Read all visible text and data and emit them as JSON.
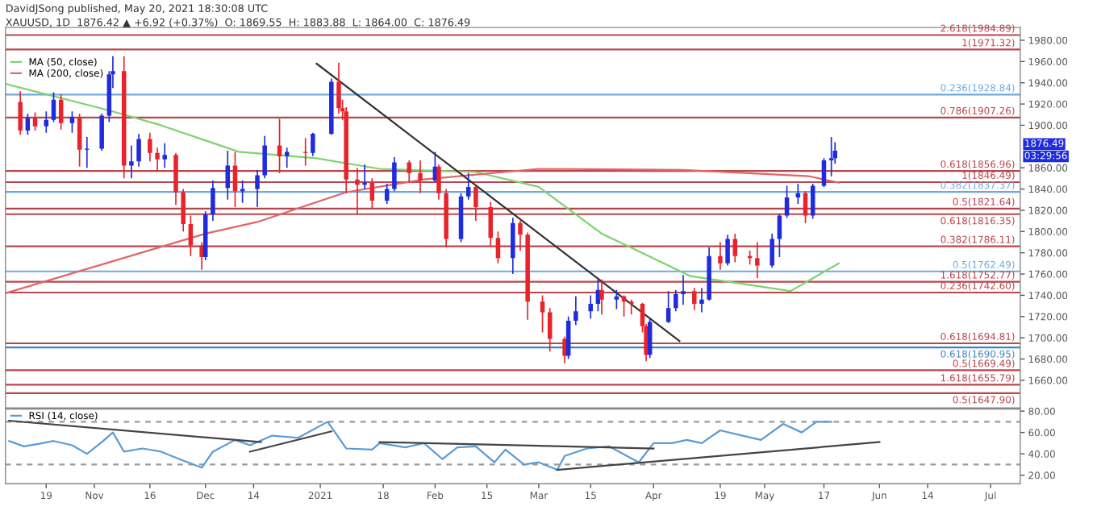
{
  "chart_data": [
    {
      "type": "candlestick",
      "x": [
        "2020-10-12",
        "2020-10-14",
        "2020-10-16",
        "2020-10-19",
        "2020-10-21",
        "2020-10-23",
        "2020-10-26",
        "2020-10-28",
        "2020-10-30",
        "2020-11-03",
        "2020-11-05",
        "2020-11-06",
        "2020-11-09",
        "2020-11-11",
        "2020-11-13",
        "2020-11-16",
        "2020-11-18",
        "2020-11-20",
        "2020-11-23",
        "2020-11-25",
        "2020-11-27",
        "2020-11-30",
        "2020-12-01",
        "2020-12-03",
        "2020-12-07",
        "2020-12-09",
        "2020-12-11",
        "2020-12-15",
        "2020-12-17",
        "2020-12-21",
        "2020-12-23",
        "2020-12-28",
        "2020-12-30",
        "2021-01-04",
        "2021-01-06",
        "2021-01-07",
        "2021-01-08",
        "2021-01-11",
        "2021-01-13",
        "2021-01-15",
        "2021-01-19",
        "2021-01-21",
        "2021-01-25",
        "2021-01-28",
        "2021-02-01",
        "2021-02-02",
        "2021-02-04",
        "2021-02-08",
        "2021-02-10",
        "2021-02-12",
        "2021-02-16",
        "2021-02-18",
        "2021-02-22",
        "2021-02-24",
        "2021-02-26",
        "2021-03-02",
        "2021-03-04",
        "2021-03-08",
        "2021-03-09",
        "2021-03-11",
        "2021-03-15",
        "2021-03-17",
        "2021-03-18",
        "2021-03-22",
        "2021-03-24",
        "2021-03-26",
        "2021-03-29",
        "2021-03-30",
        "2021-03-31",
        "2021-04-05",
        "2021-04-07",
        "2021-04-09",
        "2021-04-12",
        "2021-04-14",
        "2021-04-16",
        "2021-04-19",
        "2021-04-21",
        "2021-04-23",
        "2021-04-27",
        "2021-04-29",
        "2021-05-03",
        "2021-05-05",
        "2021-05-07",
        "2021-05-10",
        "2021-05-12",
        "2021-05-14",
        "2021-05-17",
        "2021-05-19",
        "2021-05-20"
      ],
      "ohlc": [
        [
          1922,
          1932,
          1891,
          1895
        ],
        [
          1895,
          1911,
          1891,
          1907
        ],
        [
          1907,
          1912,
          1895,
          1899
        ],
        [
          1899,
          1913,
          1893,
          1905
        ],
        [
          1905,
          1931,
          1903,
          1924
        ],
        [
          1924,
          1929,
          1896,
          1902
        ],
        [
          1902,
          1913,
          1893,
          1908
        ],
        [
          1908,
          1911,
          1861,
          1877
        ],
        [
          1877,
          1889,
          1860,
          1878
        ],
        [
          1878,
          1911,
          1876,
          1909
        ],
        [
          1909,
          1951,
          1903,
          1948
        ],
        [
          1948,
          1965,
          1935,
          1951
        ],
        [
          1951,
          1965,
          1850,
          1862
        ],
        [
          1862,
          1881,
          1850,
          1866
        ],
        [
          1866,
          1892,
          1861,
          1887
        ],
        [
          1887,
          1893,
          1866,
          1874
        ],
        [
          1874,
          1879,
          1857,
          1868
        ],
        [
          1868,
          1883,
          1860,
          1872
        ],
        [
          1872,
          1874,
          1825,
          1837
        ],
        [
          1837,
          1840,
          1800,
          1807
        ],
        [
          1807,
          1815,
          1777,
          1787
        ],
        [
          1787,
          1790,
          1764,
          1776
        ],
        [
          1776,
          1819,
          1773,
          1816
        ],
        [
          1816,
          1848,
          1810,
          1841
        ],
        [
          1841,
          1876,
          1830,
          1862
        ],
        [
          1862,
          1875,
          1823,
          1838
        ],
        [
          1838,
          1848,
          1827,
          1840
        ],
        [
          1840,
          1858,
          1823,
          1853
        ],
        [
          1853,
          1890,
          1850,
          1881
        ],
        [
          1881,
          1906,
          1855,
          1871
        ],
        [
          1871,
          1879,
          1860,
          1875
        ],
        [
          1875,
          1888,
          1862,
          1874
        ],
        [
          1874,
          1893,
          1871,
          1892
        ],
        [
          1892,
          1944,
          1891,
          1941
        ],
        [
          1941,
          1959,
          1911,
          1916
        ],
        [
          1916,
          1924,
          1905,
          1913
        ],
        [
          1913,
          1917,
          1836,
          1849
        ],
        [
          1849,
          1860,
          1817,
          1844
        ],
        [
          1844,
          1863,
          1840,
          1846
        ],
        [
          1846,
          1850,
          1822,
          1829
        ],
        [
          1829,
          1845,
          1826,
          1840
        ],
        [
          1840,
          1870,
          1838,
          1865
        ],
        [
          1865,
          1867,
          1846,
          1855
        ],
        [
          1855,
          1867,
          1836,
          1848
        ],
        [
          1848,
          1875,
          1846,
          1861
        ],
        [
          1861,
          1863,
          1830,
          1836
        ],
        [
          1836,
          1840,
          1785,
          1793
        ],
        [
          1793,
          1836,
          1790,
          1833
        ],
        [
          1833,
          1855,
          1830,
          1842
        ],
        [
          1842,
          1843,
          1810,
          1823
        ],
        [
          1823,
          1828,
          1786,
          1794
        ],
        [
          1794,
          1800,
          1770,
          1775
        ],
        [
          1775,
          1813,
          1760,
          1808
        ],
        [
          1808,
          1810,
          1782,
          1797
        ],
        [
          1797,
          1799,
          1717,
          1734
        ],
        [
          1734,
          1740,
          1705,
          1724
        ],
        [
          1724,
          1728,
          1687,
          1699
        ],
        [
          1699,
          1701,
          1676,
          1683
        ],
        [
          1683,
          1720,
          1680,
          1716
        ],
        [
          1716,
          1739,
          1712,
          1725
        ],
        [
          1725,
          1740,
          1718,
          1732
        ],
        [
          1732,
          1755,
          1725,
          1745
        ],
        [
          1745,
          1755,
          1722,
          1736
        ],
        [
          1736,
          1745,
          1727,
          1739
        ],
        [
          1739,
          1740,
          1720,
          1734
        ],
        [
          1734,
          1736,
          1722,
          1732
        ],
        [
          1732,
          1733,
          1705,
          1711
        ],
        [
          1711,
          1713,
          1678,
          1684
        ],
        [
          1684,
          1718,
          1681,
          1715
        ],
        [
          1715,
          1744,
          1714,
          1728
        ],
        [
          1728,
          1745,
          1725,
          1741
        ],
        [
          1741,
          1759,
          1731,
          1744
        ],
        [
          1744,
          1747,
          1726,
          1732
        ],
        [
          1732,
          1747,
          1724,
          1736
        ],
        [
          1736,
          1785,
          1735,
          1777
        ],
        [
          1777,
          1790,
          1764,
          1770
        ],
        [
          1770,
          1797,
          1768,
          1793
        ],
        [
          1793,
          1798,
          1771,
          1777
        ],
        [
          1777,
          1782,
          1769,
          1775
        ],
        [
          1775,
          1790,
          1756,
          1768
        ],
        [
          1768,
          1798,
          1766,
          1793
        ],
        [
          1793,
          1817,
          1776,
          1815
        ],
        [
          1815,
          1843,
          1813,
          1832
        ],
        [
          1832,
          1845,
          1826,
          1836
        ],
        [
          1836,
          1838,
          1808,
          1815
        ],
        [
          1815,
          1845,
          1812,
          1843
        ],
        [
          1843,
          1869,
          1842,
          1867
        ],
        [
          1867,
          1889,
          1852,
          1869
        ],
        [
          1869,
          1884,
          1864,
          1876
        ]
      ],
      "colors": [
        "#e8232a",
        "#1f2bdc",
        "#e8232a",
        "#1f2bdc",
        "#1f2bdc",
        "#e8232a",
        "#1f2bdc",
        "#e8232a",
        "#1f2bdc",
        "#1f2bdc",
        "#1f2bdc",
        "#1f2bdc",
        "#e8232a",
        "#1f2bdc",
        "#1f2bdc",
        "#e8232a",
        "#e8232a",
        "#1f2bdc",
        "#e8232a",
        "#e8232a",
        "#e8232a",
        "#e8232a",
        "#1f2bdc",
        "#1f2bdc",
        "#1f2bdc",
        "#e8232a",
        "#1f2bdc",
        "#1f2bdc",
        "#1f2bdc",
        "#e8232a",
        "#1f2bdc",
        "#e8232a",
        "#1f2bdc",
        "#1f2bdc",
        "#e8232a",
        "#e8232a",
        "#e8232a",
        "#e8232a",
        "#1f2bdc",
        "#e8232a",
        "#1f2bdc",
        "#1f2bdc",
        "#e8232a",
        "#e8232a",
        "#1f2bdc",
        "#e8232a",
        "#e8232a",
        "#1f2bdc",
        "#1f2bdc",
        "#e8232a",
        "#e8232a",
        "#e8232a",
        "#1f2bdc",
        "#e8232a",
        "#e8232a",
        "#e8232a",
        "#e8232a",
        "#e8232a",
        "#1f2bdc",
        "#1f2bdc",
        "#1f2bdc",
        "#1f2bdc",
        "#e8232a",
        "#1f2bdc",
        "#e8232a",
        "#e8232a",
        "#e8232a",
        "#e8232a",
        "#1f2bdc",
        "#1f2bdc",
        "#1f2bdc",
        "#1f2bdc",
        "#e8232a",
        "#1f2bdc",
        "#1f2bdc",
        "#e8232a",
        "#1f2bdc",
        "#e8232a",
        "#e8232a",
        "#e8232a",
        "#1f2bdc",
        "#1f2bdc",
        "#1f2bdc",
        "#1f2bdc",
        "#e8232a",
        "#1f2bdc",
        "#1f2bdc",
        "#1f2bdc",
        "#1f2bdc"
      ],
      "series": [
        {
          "name": "MA (50, close)",
          "type": "line",
          "color": "#7fd36e",
          "x": [
            "2020-10-08",
            "2020-11-05",
            "2020-11-19",
            "2020-12-10",
            "2020-12-31",
            "2021-01-17",
            "2021-02-12",
            "2021-03-01",
            "2021-03-18",
            "2021-04-11",
            "2021-05-08",
            "2021-05-21"
          ],
          "values": [
            1939,
            1914,
            1900,
            1875,
            1869,
            1859,
            1856,
            1842,
            1798,
            1758,
            1744,
            1770
          ]
        },
        {
          "name": "MA (200, close)",
          "type": "line",
          "color": "#e06666",
          "x": [
            "2020-10-08",
            "2020-12-01",
            "2020-12-15",
            "2021-01-08",
            "2021-01-29",
            "2021-03-01",
            "2021-04-09",
            "2021-05-13",
            "2021-05-21"
          ],
          "values": [
            1742,
            1798,
            1809,
            1837,
            1849,
            1859,
            1858,
            1852,
            1846
          ]
        },
        {
          "type": "line",
          "color": "#333333",
          "x": [
            "2020-12-31",
            "2021-04-08"
          ],
          "values": [
            1958,
            1697
          ]
        }
      ],
      "ref_lines": [
        {
          "axis": "y",
          "value": 1984.89,
          "label": "2.618(1984.89)",
          "color": "#b8474d"
        },
        {
          "axis": "y",
          "value": 1971.32,
          "label": "1(1971.32)",
          "color": "#b8474d"
        },
        {
          "axis": "y",
          "value": 1928.84,
          "label": "0.236(1928.84)",
          "color": "#6fa8dc"
        },
        {
          "axis": "y",
          "value": 1907.26,
          "label": "0.786(1907.26)",
          "color": "#b8474d"
        },
        {
          "axis": "y",
          "value": 1856.96,
          "label": "0.618(1856.96)",
          "color": "#b8474d"
        },
        {
          "axis": "y",
          "value": 1846.49,
          "label": "1(1846.49)",
          "color": "#b8474d"
        },
        {
          "axis": "y",
          "value": 1837.37,
          "label": "0.382(1837.37)",
          "color": "#6fa8dc"
        },
        {
          "axis": "y",
          "value": 1821.64,
          "label": "0.5(1821.64)",
          "color": "#b8474d"
        },
        {
          "axis": "y",
          "value": 1816.35,
          "label": "0.618(1816.35)",
          "color": "#b8474d"
        },
        {
          "axis": "y",
          "value": 1786.11,
          "label": "0.382(1786.11)",
          "color": "#b8474d"
        },
        {
          "axis": "y",
          "value": 1762.49,
          "label": "0.5(1762.49)",
          "color": "#6fa8dc"
        },
        {
          "axis": "y",
          "value": 1752.77,
          "label": "1.618(1752.77)",
          "color": "#b8474d"
        },
        {
          "axis": "y",
          "value": 1742.6,
          "label": "0.236(1742.60)",
          "color": "#b8474d"
        },
        {
          "axis": "y",
          "value": 1694.81,
          "label": "0.618(1694.81)",
          "color": "#b8474d"
        },
        {
          "axis": "y",
          "value": 1690.95,
          "label": "0.618(1690.95)",
          "color": "#3d85c6"
        },
        {
          "axis": "y",
          "value": 1669.49,
          "label": "0.5(1669.49)",
          "color": "#b8474d"
        },
        {
          "axis": "y",
          "value": 1655.79,
          "label": "1.618(1655.79)",
          "color": "#b8474d"
        },
        {
          "axis": "y",
          "value": 1647.9,
          "label": "0.5(1647.90)",
          "color": "#b8474d"
        }
      ],
      "annotations": [
        "DavidJSong published, May 20, 2021 18:30:08 UTC",
        "XAUUSD, 1D  1876.42 ▲ +6.92 (+0.37%)  O: 1869.55  H: 1883.88  L: 1864.00  C: 1876.49",
        "1876.49",
        "03:29:56"
      ],
      "xlim": [
        "2020-10-08",
        "2021-07-09"
      ],
      "ylim": [
        1634,
        1992
      ],
      "yticks": [
        {
          "value": 1660,
          "label": "1660.00"
        },
        {
          "value": 1680,
          "label": "1680.00"
        },
        {
          "value": 1700,
          "label": "1700.00"
        },
        {
          "value": 1720,
          "label": "1720.00"
        },
        {
          "value": 1740,
          "label": "1740.00"
        },
        {
          "value": 1760,
          "label": "1760.00"
        },
        {
          "value": 1780,
          "label": "1780.00"
        },
        {
          "value": 1800,
          "label": "1800.00"
        },
        {
          "value": 1820,
          "label": "1820.00"
        },
        {
          "value": 1840,
          "label": "1840.00"
        },
        {
          "value": 1860,
          "label": "1860.00"
        },
        {
          "value": 1900,
          "label": "1900.00"
        },
        {
          "value": 1920,
          "label": "1920.00"
        },
        {
          "value": 1940,
          "label": "1940.00"
        },
        {
          "value": 1960,
          "label": "1960.00"
        },
        {
          "value": 1980,
          "label": "1980.00"
        }
      ],
      "tick_labels": "y",
      "legend": "top left",
      "grid": false
    },
    {
      "type": "line",
      "series": [
        {
          "name": "RSI (14, close)",
          "color": "#5b9bd5",
          "x": [
            "2020-10-09",
            "2020-10-13",
            "2020-10-18",
            "2020-10-21",
            "2020-10-26",
            "2020-10-30",
            "2020-11-03",
            "2020-11-06",
            "2020-11-09",
            "2020-11-14",
            "2020-11-19",
            "2020-11-24",
            "2020-11-30",
            "2020-12-03",
            "2020-12-09",
            "2020-12-13",
            "2020-12-19",
            "2020-12-26",
            "2021-01-03",
            "2021-01-08",
            "2021-01-15",
            "2021-01-17",
            "2021-01-24",
            "2021-01-29",
            "2021-02-03",
            "2021-02-07",
            "2021-02-12",
            "2021-02-17",
            "2021-02-20",
            "2021-02-25",
            "2021-03-01",
            "2021-03-06",
            "2021-03-08",
            "2021-03-14",
            "2021-03-20",
            "2021-03-28",
            "2021-04-01",
            "2021-04-06",
            "2021-04-10",
            "2021-04-14",
            "2021-04-19",
            "2021-04-25",
            "2021-04-30",
            "2021-05-06",
            "2021-05-11",
            "2021-05-15",
            "2021-05-19"
          ],
          "values": [
            52,
            47,
            50,
            52,
            48,
            40,
            51,
            60,
            42,
            45,
            42,
            35,
            27,
            42,
            53,
            48,
            57,
            55,
            70,
            45,
            44,
            50,
            46,
            50,
            35,
            46,
            47,
            32,
            44,
            30,
            32,
            25,
            38,
            45,
            47,
            32,
            50,
            50,
            53,
            50,
            62,
            57,
            53,
            68,
            60,
            70,
            70
          ]
        },
        {
          "type": "line",
          "color": "#444444",
          "x": [
            "2020-10-09",
            "2020-12-16"
          ],
          "values": [
            71,
            51
          ]
        },
        {
          "type": "line",
          "color": "#444444",
          "x": [
            "2020-12-13",
            "2021-01-04"
          ],
          "values": [
            42,
            61
          ]
        },
        {
          "type": "line",
          "color": "#444444",
          "x": [
            "2021-01-17",
            "2021-04-01"
          ],
          "values": [
            51,
            45
          ]
        },
        {
          "type": "line",
          "color": "#444444",
          "x": [
            "2021-03-06",
            "2021-06-01"
          ],
          "values": [
            25,
            51
          ]
        }
      ],
      "ref_lines": [
        {
          "axis": "y",
          "value": 70,
          "color": "#999999",
          "line_style": "dashed"
        },
        {
          "axis": "y",
          "value": 30,
          "color": "#999999",
          "line_style": "dashed"
        }
      ],
      "xlim": [
        "2020-10-08",
        "2021-07-09"
      ],
      "xticks": [
        {
          "value": "2020-10-19",
          "label": "19"
        },
        {
          "value": "2020-11-01",
          "label": "Nov"
        },
        {
          "value": "2020-11-16",
          "label": "16"
        },
        {
          "value": "2020-12-01",
          "label": "Dec"
        },
        {
          "value": "2020-12-14",
          "label": "14"
        },
        {
          "value": "2021-01-01",
          "label": "2021"
        },
        {
          "value": "2021-01-18",
          "label": "18"
        },
        {
          "value": "2021-02-01",
          "label": "Feb"
        },
        {
          "value": "2021-02-15",
          "label": "15"
        },
        {
          "value": "2021-03-01",
          "label": "Mar"
        },
        {
          "value": "2021-03-15",
          "label": "15"
        },
        {
          "value": "2021-04-01",
          "label": "Apr"
        },
        {
          "value": "2021-04-19",
          "label": "19"
        },
        {
          "value": "2021-05-01",
          "label": "May"
        },
        {
          "value": "2021-05-17",
          "label": "17"
        },
        {
          "value": "2021-06-01",
          "label": "Jun"
        },
        {
          "value": "2021-06-14",
          "label": "14"
        },
        {
          "value": "2021-07-01",
          "label": "Jul"
        }
      ],
      "ylim": [
        12,
        82
      ],
      "yticks": [
        {
          "value": 20,
          "label": "20.00"
        },
        {
          "value": 40,
          "label": "40.00"
        },
        {
          "value": 60,
          "label": "60.00"
        },
        {
          "value": 80,
          "label": "80.00"
        }
      ],
      "legend": "top left",
      "grid": false
    }
  ]
}
